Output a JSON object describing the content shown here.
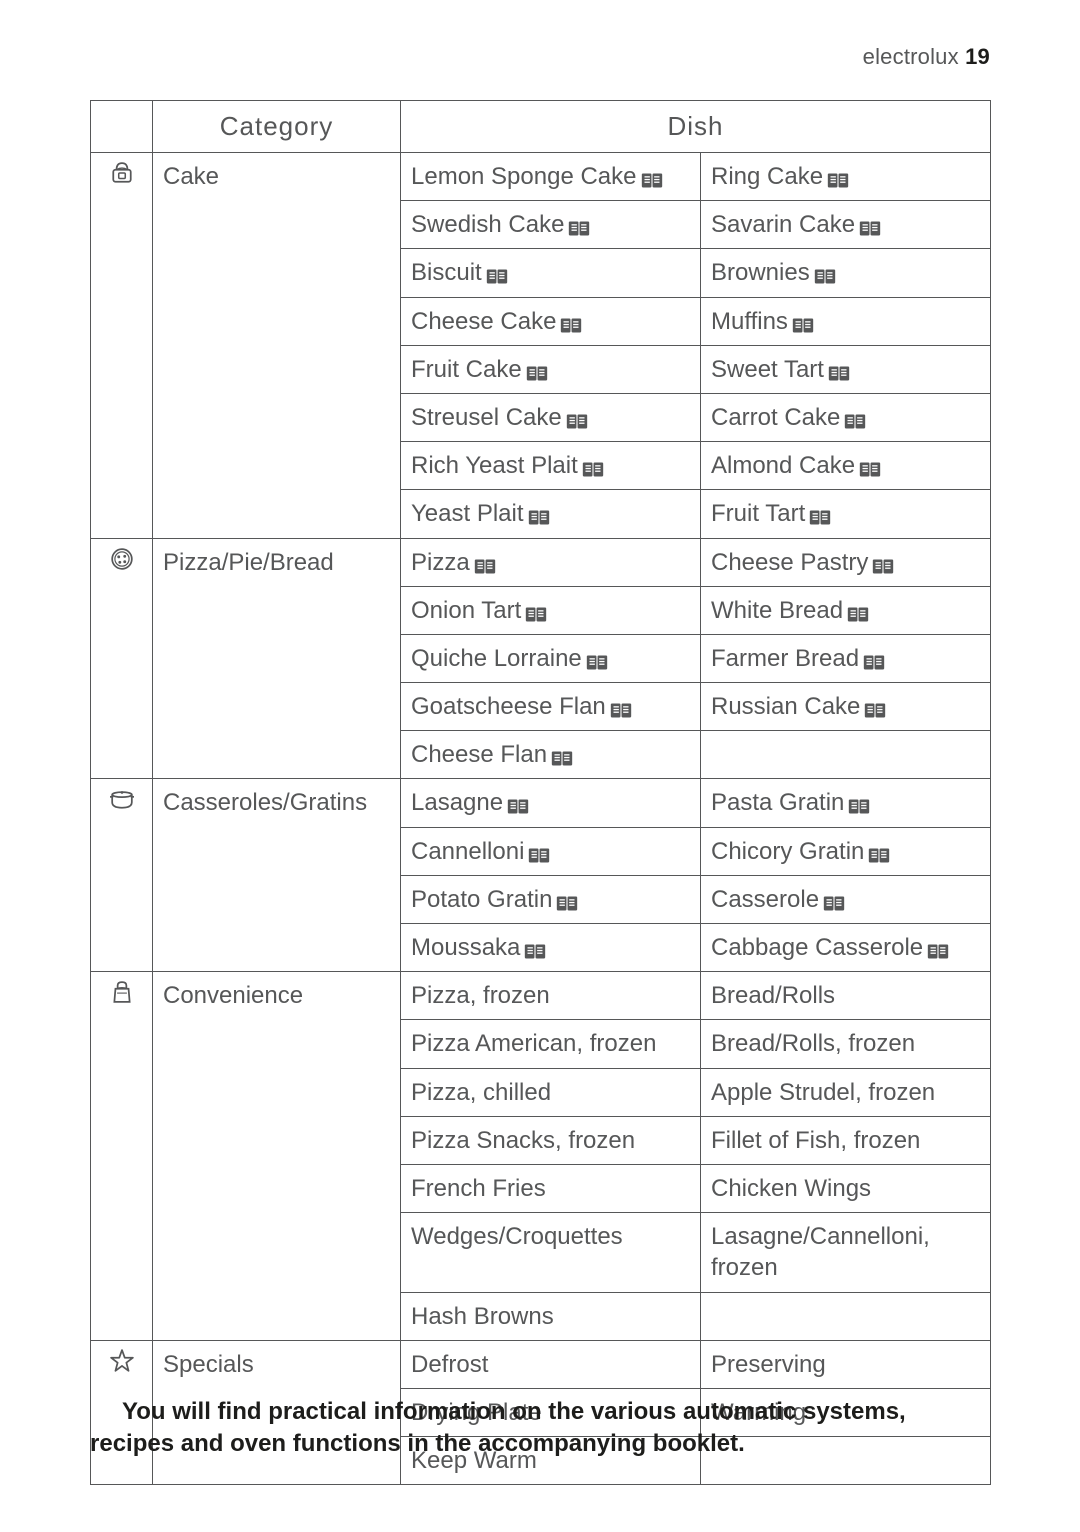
{
  "header": {
    "brand": "electrolux",
    "page_number": "19"
  },
  "table": {
    "headers": {
      "category": "Category",
      "dish": "Dish"
    },
    "sections": [
      {
        "icon": "weigh-icon",
        "category": "Cake",
        "rows": [
          {
            "left": "Lemon Sponge Cake",
            "left_book": true,
            "right": "Ring Cake",
            "right_book": true
          },
          {
            "left": "Swedish Cake",
            "left_book": true,
            "right": "Savarin Cake",
            "right_book": true
          },
          {
            "left": "Biscuit",
            "left_book": true,
            "right": "Brownies",
            "right_book": true
          },
          {
            "left": "Cheese Cake",
            "left_book": true,
            "right": "Muffins",
            "right_book": true
          },
          {
            "left": "Fruit Cake",
            "left_book": true,
            "right": "Sweet Tart",
            "right_book": true
          },
          {
            "left": "Streusel Cake",
            "left_book": true,
            "right": "Carrot Cake",
            "right_book": true
          },
          {
            "left": "Rich Yeast Plait",
            "left_book": true,
            "right": "Almond Cake",
            "right_book": true
          },
          {
            "left": "Yeast Plait",
            "left_book": true,
            "right": "Fruit Tart",
            "right_book": true
          }
        ]
      },
      {
        "icon": "pizza-icon",
        "category": "Pizza/Pie/Bread",
        "rows": [
          {
            "left": "Pizza",
            "left_book": true,
            "right": "Cheese Pastry",
            "right_book": true
          },
          {
            "left": "Onion Tart",
            "left_book": true,
            "right": "White Bread",
            "right_book": true
          },
          {
            "left": "Quiche Lorraine",
            "left_book": true,
            "right": "Farmer Bread",
            "right_book": true
          },
          {
            "left": "Goatscheese Flan",
            "left_book": true,
            "right": "Russian Cake",
            "right_book": true
          },
          {
            "left": "Cheese Flan",
            "left_book": true,
            "right": "",
            "right_book": false
          }
        ]
      },
      {
        "icon": "pot-icon",
        "category": "Casseroles/Gratins",
        "rows": [
          {
            "left": "Lasagne",
            "left_book": true,
            "right": "Pasta Gratin",
            "right_book": true
          },
          {
            "left": "Cannelloni",
            "left_book": true,
            "right": "Chicory Gratin",
            "right_book": true
          },
          {
            "left": "Potato Gratin",
            "left_book": true,
            "right": "Casserole",
            "right_book": true
          },
          {
            "left": "Moussaka",
            "left_book": true,
            "right": "Cabbage Casserole",
            "right_book": true
          }
        ]
      },
      {
        "icon": "bag-icon",
        "category": "Convenience",
        "rows": [
          {
            "left": "Pizza, frozen",
            "left_book": false,
            "right": "Bread/Rolls",
            "right_book": false
          },
          {
            "left": "Pizza American, frozen",
            "left_book": false,
            "right": "Bread/Rolls, frozen",
            "right_book": false
          },
          {
            "left": "Pizza,  chilled",
            "left_book": false,
            "right": "Apple Strudel, frozen",
            "right_book": false
          },
          {
            "left": "Pizza Snacks, frozen",
            "left_book": false,
            "right": "Fillet of Fish, frozen",
            "right_book": false
          },
          {
            "left": "French Fries",
            "left_book": false,
            "right": "Chicken Wings",
            "right_book": false
          },
          {
            "left": "Wedges/Croquettes",
            "left_book": false,
            "right": "Lasagne/Cannelloni, frozen",
            "right_book": false
          },
          {
            "left": "Hash Browns",
            "left_book": false,
            "right": "",
            "right_book": false
          }
        ]
      },
      {
        "icon": "star-icon",
        "category": "Specials",
        "rows": [
          {
            "left": "Defrost",
            "left_book": false,
            "right": "Preserving",
            "right_book": false
          },
          {
            "left": "Drying Plate",
            "left_book": false,
            "right": "Warming",
            "right_book": false
          },
          {
            "left": "Keep Warm",
            "left_book": false,
            "right": "",
            "right_book": false
          }
        ]
      }
    ]
  },
  "footer_note": "You will find practical information on the various automatic systems, recipes and oven functions in the accompanying booklet.",
  "colors": {
    "text": "#565758",
    "strong": "#1d1d1b",
    "border": "#565758",
    "bg": "#ffffff"
  },
  "fontsize": {
    "header": 22,
    "th": 26,
    "td": 24,
    "footer": 24
  }
}
